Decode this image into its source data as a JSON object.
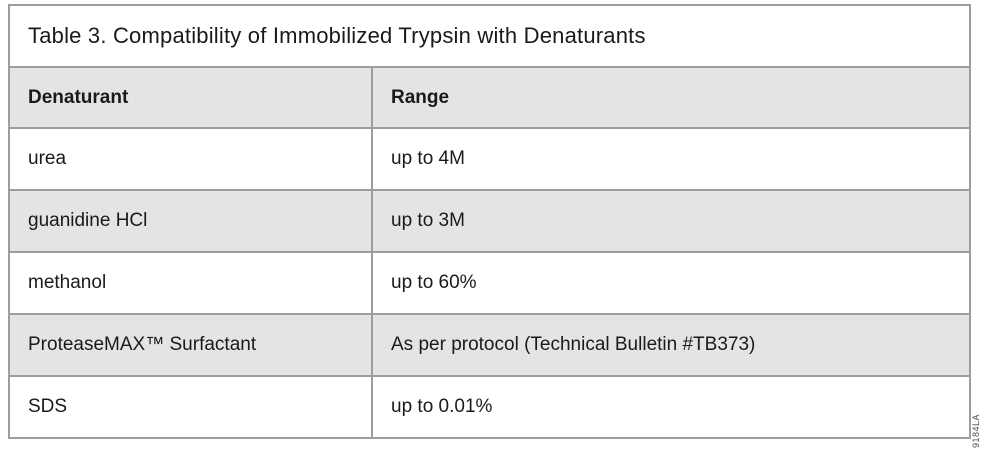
{
  "figure": {
    "title": "Table 3. Compatibility of Immobilized Trypsin with Denaturants",
    "figure_code": "9184LA"
  },
  "table": {
    "headers": {
      "denaturant": "Denaturant",
      "range": "Range"
    },
    "rows": [
      {
        "denaturant": "urea",
        "range": "up to 4M"
      },
      {
        "denaturant": "guanidine HCl",
        "range": "up to 3M"
      },
      {
        "denaturant": "methanol",
        "range": "up to 60%"
      },
      {
        "denaturant": "ProteaseMAX™ Surfactant",
        "range": "As per protocol (Technical Bulletin #TB373)"
      },
      {
        "denaturant": "SDS",
        "range": "up to 0.01%"
      }
    ]
  },
  "colors": {
    "row_shaded": "#e4e4e4",
    "border": "#9d9d9d",
    "text": "#1a1a1a",
    "figure_code_text": "#4d4d4d"
  }
}
